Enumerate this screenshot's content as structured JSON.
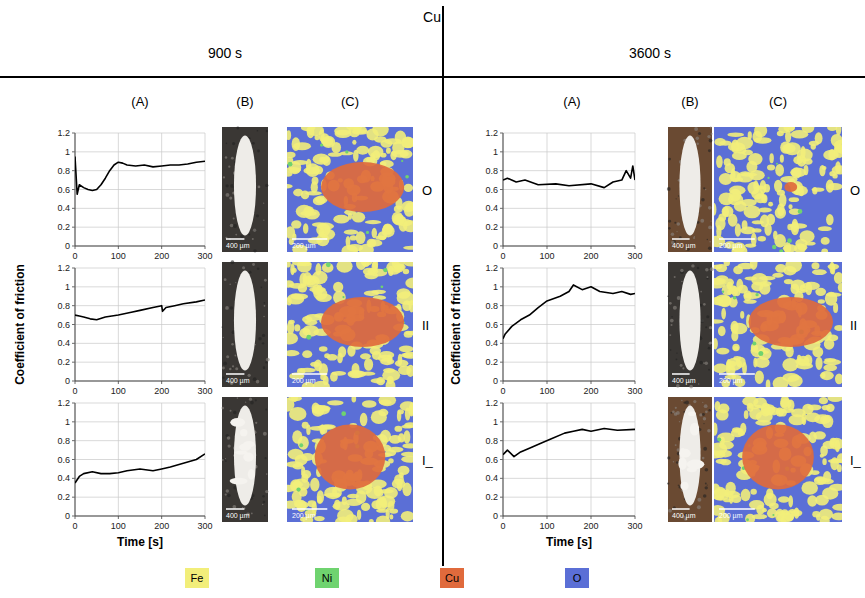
{
  "figure": {
    "title": "Cu",
    "columns": [
      {
        "title": "900 s",
        "panels": [
          "(A)",
          "(B)",
          "(C)"
        ],
        "rows": [
          "O",
          "II",
          "I_"
        ]
      },
      {
        "title": "3600 s",
        "panels": [
          "(A)",
          "(B)",
          "(C)"
        ],
        "rows": [
          "O",
          "II",
          "I_"
        ]
      }
    ],
    "y_label": "Coefficient of friction",
    "x_label": "Time [s]",
    "scale_b": "400 µm",
    "scale_c": "200 µm",
    "legend": [
      {
        "name": "Fe",
        "color": "#f2ee7a"
      },
      {
        "name": "Ni",
        "color": "#6fd36f"
      },
      {
        "name": "Cu",
        "color": "#e06a3c"
      },
      {
        "name": "O",
        "color": "#5b6fd6"
      }
    ]
  },
  "chart_data": [
    {
      "type": "line",
      "color": "#000000",
      "grid": true,
      "xlim": [
        0,
        300
      ],
      "ylim": [
        0,
        1.2
      ],
      "xticks": [
        0,
        100,
        200,
        300
      ],
      "yticks": [
        0,
        0.2,
        0.4,
        0.6,
        0.8,
        1,
        1.2
      ],
      "x": [
        0,
        5,
        10,
        20,
        30,
        40,
        50,
        60,
        70,
        80,
        90,
        100,
        110,
        120,
        140,
        160,
        180,
        200,
        220,
        240,
        260,
        280,
        300
      ],
      "values": [
        0.95,
        0.55,
        0.65,
        0.62,
        0.6,
        0.59,
        0.6,
        0.65,
        0.72,
        0.8,
        0.86,
        0.89,
        0.88,
        0.86,
        0.85,
        0.86,
        0.84,
        0.85,
        0.86,
        0.86,
        0.87,
        0.89,
        0.9
      ]
    },
    {
      "type": "line",
      "color": "#000000",
      "grid": true,
      "xlim": [
        0,
        300
      ],
      "ylim": [
        0,
        1.2
      ],
      "xticks": [
        0,
        100,
        200,
        300
      ],
      "yticks": [
        0,
        0.2,
        0.4,
        0.6,
        0.8,
        1,
        1.2
      ],
      "x": [
        0,
        10,
        20,
        35,
        50,
        70,
        100,
        130,
        150,
        180,
        200,
        202,
        210,
        230,
        250,
        280,
        300
      ],
      "values": [
        0.7,
        0.69,
        0.68,
        0.66,
        0.65,
        0.68,
        0.7,
        0.73,
        0.75,
        0.78,
        0.8,
        0.74,
        0.78,
        0.8,
        0.82,
        0.84,
        0.86
      ]
    },
    {
      "type": "line",
      "color": "#000000",
      "grid": true,
      "xlim": [
        0,
        300
      ],
      "ylim": [
        0,
        1.2
      ],
      "xticks": [
        0,
        100,
        200,
        300
      ],
      "yticks": [
        0,
        0.2,
        0.4,
        0.6,
        0.8,
        1,
        1.2
      ],
      "x": [
        0,
        10,
        20,
        40,
        60,
        80,
        100,
        120,
        150,
        180,
        200,
        220,
        250,
        280,
        300
      ],
      "values": [
        0.35,
        0.42,
        0.45,
        0.47,
        0.45,
        0.45,
        0.46,
        0.48,
        0.5,
        0.48,
        0.5,
        0.52,
        0.56,
        0.6,
        0.66
      ]
    },
    {
      "type": "line",
      "color": "#000000",
      "grid": true,
      "xlim": [
        0,
        300
      ],
      "ylim": [
        0,
        1.2
      ],
      "xticks": [
        0,
        100,
        200,
        300
      ],
      "yticks": [
        0,
        0.2,
        0.4,
        0.6,
        0.8,
        1,
        1.2
      ],
      "x": [
        0,
        10,
        30,
        50,
        80,
        120,
        150,
        200,
        230,
        250,
        270,
        280,
        290,
        295,
        300
      ],
      "values": [
        0.7,
        0.72,
        0.68,
        0.7,
        0.65,
        0.66,
        0.64,
        0.66,
        0.62,
        0.68,
        0.7,
        0.8,
        0.72,
        0.85,
        0.7
      ]
    },
    {
      "type": "line",
      "color": "#000000",
      "grid": true,
      "xlim": [
        0,
        300
      ],
      "ylim": [
        0,
        1.2
      ],
      "xticks": [
        0,
        100,
        200,
        300
      ],
      "yticks": [
        0,
        0.2,
        0.4,
        0.6,
        0.8,
        1,
        1.2
      ],
      "x": [
        0,
        5,
        20,
        40,
        60,
        80,
        100,
        130,
        150,
        160,
        180,
        200,
        220,
        250,
        270,
        290,
        300
      ],
      "values": [
        0.45,
        0.5,
        0.58,
        0.65,
        0.7,
        0.78,
        0.85,
        0.9,
        0.95,
        1.02,
        0.97,
        1.0,
        0.95,
        0.93,
        0.95,
        0.92,
        0.93
      ]
    },
    {
      "type": "line",
      "color": "#000000",
      "grid": true,
      "xlim": [
        0,
        300
      ],
      "ylim": [
        0,
        1.2
      ],
      "xticks": [
        0,
        100,
        200,
        300
      ],
      "yticks": [
        0,
        0.2,
        0.4,
        0.6,
        0.8,
        1,
        1.2
      ],
      "x": [
        0,
        10,
        25,
        40,
        60,
        90,
        110,
        140,
        160,
        180,
        200,
        230,
        260,
        300
      ],
      "values": [
        0.65,
        0.7,
        0.63,
        0.68,
        0.72,
        0.78,
        0.82,
        0.88,
        0.9,
        0.92,
        0.9,
        0.93,
        0.91,
        0.92
      ]
    }
  ]
}
